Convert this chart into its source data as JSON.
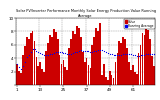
{
  "title": "Solar PV/Inverter Performance Monthly Solar Energy Production Value Running Average",
  "bar_values": [
    3.2,
    2.1,
    1.8,
    4.5,
    5.8,
    7.2,
    6.9,
    7.8,
    8.1,
    6.5,
    4.2,
    2.8,
    3.5,
    2.4,
    2.0,
    5.1,
    6.3,
    7.5,
    7.1,
    8.3,
    7.9,
    6.8,
    4.5,
    3.1,
    3.8,
    2.7,
    2.2,
    5.5,
    6.8,
    8.0,
    7.6,
    8.8,
    8.5,
    7.2,
    4.9,
    3.4,
    4.1,
    3.0,
    2.5,
    5.9,
    7.2,
    8.5,
    8.1,
    9.2,
    1.5,
    3.2,
    1.2,
    0.8,
    2.1,
    1.5,
    1.0,
    3.5,
    4.8,
    6.5,
    6.2,
    7.1,
    6.8,
    5.5,
    3.5,
    2.2,
    3.0,
    2.0,
    1.6,
    4.8,
    6.0,
    7.8,
    7.4,
    8.5,
    8.2,
    6.8,
    4.4,
    2.9
  ],
  "running_avg": [
    3.2,
    2.65,
    2.37,
    2.9,
    3.48,
    4.13,
    4.5,
    4.94,
    5.31,
    5.32,
    5.11,
    4.93,
    4.81,
    4.65,
    4.47,
    4.45,
    4.5,
    4.6,
    4.67,
    4.79,
    4.89,
    4.95,
    4.9,
    4.86,
    4.83,
    4.75,
    4.64,
    4.64,
    4.69,
    4.8,
    4.88,
    5.0,
    5.1,
    5.15,
    5.12,
    5.09,
    5.07,
    5.03,
    4.97,
    4.98,
    5.03,
    5.12,
    5.18,
    5.29,
    5.16,
    5.09,
    4.96,
    4.82,
    4.69,
    4.57,
    4.45,
    4.43,
    4.44,
    4.5,
    4.54,
    4.6,
    4.64,
    4.65,
    4.62,
    4.57,
    4.52,
    4.46,
    4.39,
    4.39,
    4.41,
    4.47,
    4.51,
    4.58,
    4.62,
    4.64,
    4.61,
    4.57
  ],
  "bar_color": "#cc0000",
  "avg_color": "#0000ee",
  "bg_color": "#ffffff",
  "grid_color": "#888888",
  "title_color": "#000000",
  "ylim": [
    0,
    10
  ],
  "ytick_labels": [
    "",
    "2",
    "4",
    "6",
    "8",
    "10"
  ],
  "ytick_vals": [
    0,
    2,
    4,
    6,
    8,
    10
  ],
  "n_bars": 72,
  "legend_value_color": "#cc0000",
  "legend_avg_color": "#0000ee"
}
